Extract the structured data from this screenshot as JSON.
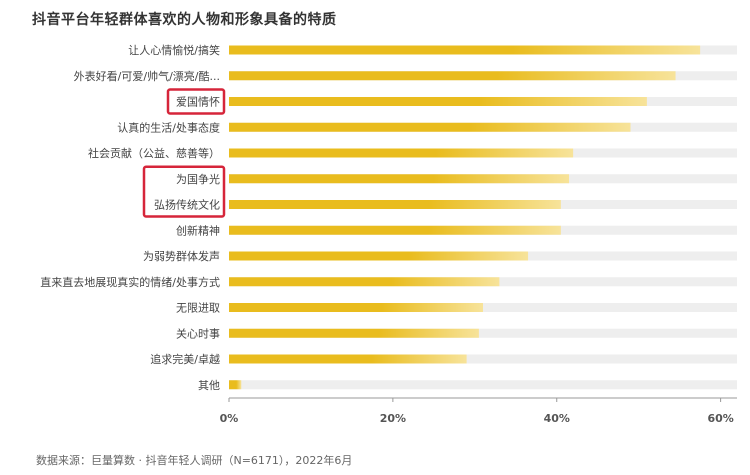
{
  "chart_data": {
    "type": "bar",
    "orientation": "horizontal",
    "title": "抖音平台年轻群体喜欢的人物和形象具备的特质",
    "categories": [
      "让人心情愉悦/搞笑",
      "外表好看/可爱/帅气/漂亮/酷...",
      "爱国情怀",
      "认真的生活/处事态度",
      "社会贡献（公益、慈善等）",
      "为国争光",
      "弘扬传统文化",
      "创新精神",
      "为弱势群体发声",
      "直来直去地展现真实的情绪/处事方式",
      "无限进取",
      "关心时事",
      "追求完美/卓越",
      "其他"
    ],
    "values": [
      57.5,
      54.5,
      51,
      49,
      42,
      41.5,
      40.5,
      40.5,
      36.5,
      33,
      31,
      30.5,
      29,
      1.5
    ],
    "unit": "%",
    "xlim": [
      0,
      62
    ],
    "xticks": [
      0,
      20,
      40,
      60
    ],
    "xtick_labels": [
      "0%",
      "20%",
      "40%",
      "60%"
    ],
    "highlighted_categories": [
      "爱国情怀",
      "为国争光",
      "弘扬传统文化"
    ],
    "grid": false,
    "source": "数据来源：巨量算数 · 抖音年轻人调研（N=6171），2022年6月",
    "colors": {
      "bar": "#E9BC1E",
      "bar_light": "#F7E39A",
      "track": "#EEEEEE",
      "highlight_box": "#D6253A",
      "axis": "#999999"
    }
  }
}
